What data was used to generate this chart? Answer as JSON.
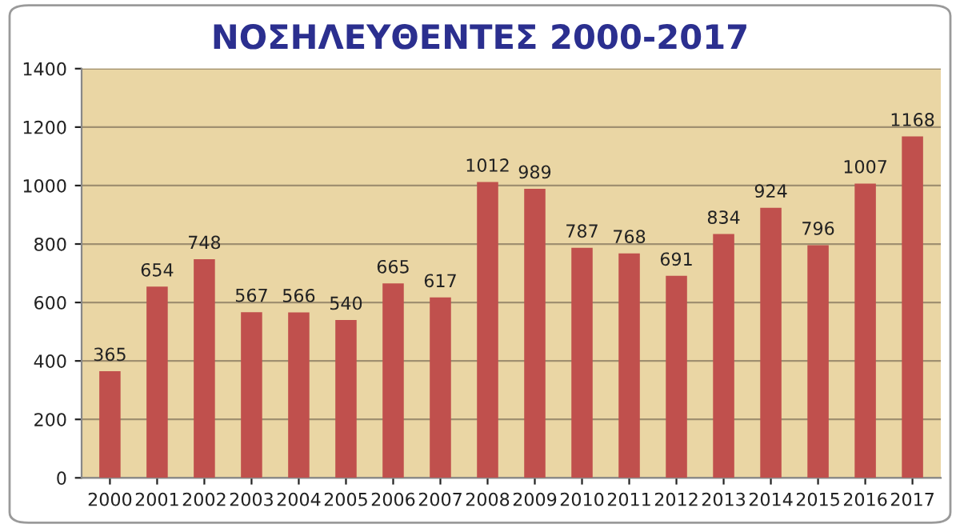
{
  "chart_data": {
    "type": "bar",
    "title": "ΝΟΣΗΛΕΥΘΕΝΤΕΣ 2000-2017",
    "categories": [
      "2000",
      "2001",
      "2002",
      "2003",
      "2004",
      "2005",
      "2006",
      "2007",
      "2008",
      "2009",
      "2010",
      "2011",
      "2012",
      "2013",
      "2014",
      "2015",
      "2016",
      "2017"
    ],
    "values": [
      365,
      654,
      748,
      567,
      566,
      540,
      665,
      617,
      1012,
      989,
      787,
      768,
      691,
      834,
      924,
      796,
      1007,
      1168
    ],
    "color": "#c0504d",
    "ylim": [
      0,
      1400
    ],
    "yticks": [
      0,
      200,
      400,
      600,
      800,
      1000,
      1200,
      1400
    ],
    "grid": "y",
    "data_labels": true
  }
}
